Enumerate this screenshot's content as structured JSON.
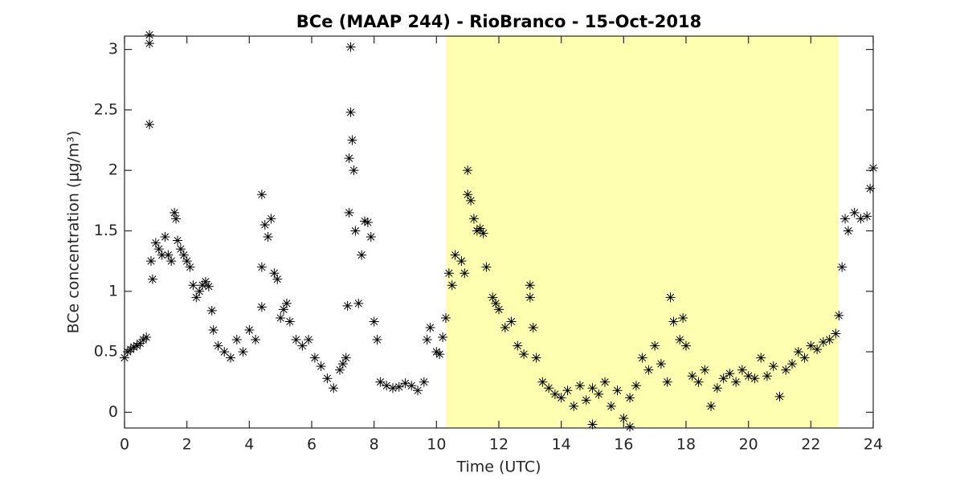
{
  "chart_data": {
    "type": "scatter",
    "title": "BCe (MAAP 244) - RioBranco - 15-Oct-2018",
    "x_label": "Time (UTC)",
    "y_label": "BCe concentration (μg/m³)",
    "xlim": [
      0,
      24
    ],
    "xticks": [
      0,
      2,
      4,
      6,
      8,
      10,
      12,
      14,
      16,
      18,
      20,
      22,
      24
    ],
    "ylim": [
      -0.13,
      3.11
    ],
    "yticks": [
      0,
      0.5,
      1,
      1.5,
      2,
      2.5,
      3
    ],
    "highlight_xlim": [
      10.3,
      22.87
    ],
    "highlight_color": "#ffffb2",
    "marker_color": "#000000",
    "series": [
      {
        "color": "#000000",
        "x": [
          0.0,
          0.1,
          0.2,
          0.3,
          0.4,
          0.5,
          0.6,
          0.7,
          0.8,
          0.8,
          0.8,
          0.85,
          0.9,
          1.0,
          1.1,
          1.2,
          1.3,
          1.4,
          1.5,
          1.6,
          1.65,
          1.7,
          1.8,
          1.9,
          2.0,
          2.1,
          2.2,
          2.3,
          2.4,
          2.5,
          2.6,
          2.7,
          2.8,
          2.85,
          3.0,
          3.2,
          3.4,
          3.6,
          3.8,
          4.0,
          4.2,
          4.4,
          4.4,
          4.4,
          4.5,
          4.6,
          4.7,
          4.8,
          4.9,
          5.0,
          5.1,
          5.2,
          5.3,
          5.5,
          5.7,
          5.9,
          6.1,
          6.3,
          6.5,
          6.7,
          6.9,
          7.0,
          7.1,
          7.15,
          7.2,
          7.2,
          7.25,
          7.25,
          7.3,
          7.35,
          7.4,
          7.5,
          7.6,
          7.7,
          7.8,
          7.9,
          8.0,
          8.1,
          8.2,
          8.4,
          8.6,
          8.8,
          9.0,
          9.2,
          9.4,
          9.6,
          9.7,
          9.8,
          10.0,
          10.1,
          10.2,
          10.3,
          10.4,
          10.5,
          10.6,
          10.8,
          10.9,
          11.0,
          11.0,
          11.1,
          11.2,
          11.3,
          11.4,
          11.5,
          11.6,
          11.8,
          11.9,
          12.0,
          12.2,
          12.4,
          12.6,
          12.8,
          13.0,
          13.0,
          13.1,
          13.2,
          13.4,
          13.6,
          13.8,
          14.0,
          14.2,
          14.4,
          14.6,
          14.8,
          15.0,
          15.0,
          15.2,
          15.4,
          15.6,
          15.8,
          16.0,
          16.2,
          16.2,
          16.4,
          16.6,
          16.8,
          17.0,
          17.2,
          17.4,
          17.5,
          17.6,
          17.8,
          17.9,
          18.0,
          18.2,
          18.4,
          18.6,
          18.8,
          19.0,
          19.2,
          19.4,
          19.6,
          19.8,
          20.0,
          20.2,
          20.4,
          20.6,
          20.8,
          21.0,
          21.2,
          21.4,
          21.6,
          21.8,
          22.0,
          22.2,
          22.4,
          22.6,
          22.8,
          22.9,
          23.0,
          23.1,
          23.2,
          23.4,
          23.6,
          23.8,
          23.9,
          24.0
        ],
        "values": [
          0.45,
          0.5,
          0.52,
          0.54,
          0.55,
          0.57,
          0.6,
          0.62,
          2.38,
          3.05,
          3.12,
          1.25,
          1.1,
          1.4,
          1.35,
          1.3,
          1.45,
          1.3,
          1.25,
          1.65,
          1.6,
          1.42,
          1.35,
          1.3,
          1.25,
          1.2,
          1.05,
          0.95,
          1.0,
          1.05,
          1.08,
          1.04,
          0.84,
          0.68,
          0.55,
          0.5,
          0.45,
          0.6,
          0.5,
          0.68,
          0.6,
          1.8,
          1.2,
          0.87,
          1.55,
          1.45,
          1.6,
          1.15,
          1.1,
          0.78,
          0.85,
          0.9,
          0.75,
          0.6,
          0.55,
          0.6,
          0.45,
          0.38,
          0.28,
          0.2,
          0.35,
          0.4,
          0.45,
          0.88,
          1.65,
          2.1,
          2.48,
          3.02,
          2.25,
          2.0,
          1.5,
          0.9,
          1.3,
          1.58,
          1.57,
          1.45,
          0.75,
          0.6,
          0.25,
          0.22,
          0.2,
          0.21,
          0.24,
          0.22,
          0.18,
          0.25,
          0.6,
          0.7,
          0.5,
          0.48,
          0.62,
          0.78,
          1.15,
          1.05,
          1.3,
          1.25,
          1.15,
          2.0,
          1.8,
          1.75,
          1.6,
          1.5,
          1.52,
          1.48,
          1.2,
          0.95,
          0.9,
          0.85,
          0.7,
          0.75,
          0.55,
          0.48,
          0.95,
          1.05,
          0.7,
          0.45,
          0.25,
          0.2,
          0.15,
          0.12,
          0.18,
          0.05,
          0.22,
          0.1,
          0.2,
          -0.1,
          0.15,
          0.25,
          0.05,
          0.18,
          -0.05,
          0.12,
          -0.12,
          0.22,
          0.45,
          0.35,
          0.55,
          0.4,
          0.25,
          0.95,
          0.75,
          0.6,
          0.78,
          0.55,
          0.3,
          0.25,
          0.35,
          0.05,
          0.2,
          0.28,
          0.32,
          0.25,
          0.35,
          0.3,
          0.28,
          0.45,
          0.3,
          0.38,
          0.13,
          0.35,
          0.4,
          0.5,
          0.45,
          0.55,
          0.52,
          0.58,
          0.6,
          0.65,
          0.8,
          1.2,
          1.6,
          1.5,
          1.65,
          1.6,
          1.62,
          1.85,
          2.02
        ]
      }
    ]
  }
}
